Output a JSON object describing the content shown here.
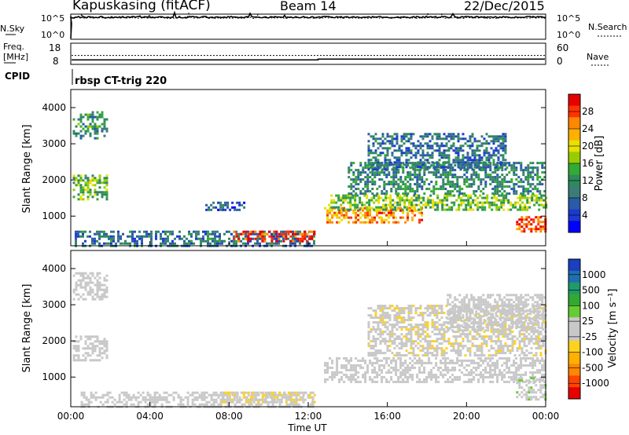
{
  "header": {
    "station": "Kapuskasing (fitACF)",
    "beam": "Beam 14",
    "date": "22/Dec/2015"
  },
  "noise_panel": {
    "left_label": "N.Sky",
    "left_ticks": [
      "10^5",
      "10^0"
    ],
    "right_label": "N.Search",
    "right_ticks": [
      "10^5",
      "10^0"
    ]
  },
  "freq_panel": {
    "left_label_lines": [
      "Freq.",
      "[MHz]"
    ],
    "left_ticks": [
      "18",
      "8"
    ],
    "right_label": "Nave",
    "right_ticks": [
      "60",
      "0"
    ]
  },
  "cpid": {
    "label": "CPID",
    "text": "rbsp CT-trig 220"
  },
  "power_colorbar": {
    "title": "Power [dB]",
    "ticks": [
      "28",
      "24",
      "20",
      "16",
      "12",
      "8",
      "4"
    ],
    "colors": [
      "#e60000",
      "#ff3300",
      "#ff8800",
      "#ffb000",
      "#e8e000",
      "#99cc00",
      "#33aa33",
      "#2d8a5a",
      "#3b7c78",
      "#2a5aa8",
      "#1a3ad0",
      "#0000ff"
    ]
  },
  "velocity_colorbar": {
    "title": "Velocity [m s⁻¹]",
    "ticks": [
      "1000",
      "500",
      "100",
      "25",
      "-25",
      "-100",
      "-500",
      "-1000"
    ],
    "colors": [
      "#1a3fbf",
      "#1f6fb0",
      "#1f9a6a",
      "#33a833",
      "#66cc33",
      "#c8c8c8",
      "#c8c8c8",
      "#ffd21f",
      "#ffb000",
      "#ff8800",
      "#ff4400",
      "#e60000"
    ]
  },
  "chart_data": {
    "type": "heatmap",
    "ylabel": "Slant Range [km]",
    "xlabel": "Time UT",
    "x_ticks": [
      "00:00",
      "04:00",
      "08:00",
      "12:00",
      "16:00",
      "20:00",
      "00:00"
    ],
    "y_ticks": [
      1000,
      2000,
      3000,
      4000
    ],
    "xlim_hours": [
      0,
      24
    ],
    "ylim_km": [
      180,
      4500
    ],
    "power_regions": [
      {
        "t0": 0.1,
        "t1": 1.8,
        "r0": 1450,
        "r1": 2150,
        "value": 14
      },
      {
        "t0": 0.1,
        "t1": 1.8,
        "r0": 3150,
        "r1": 3900,
        "value": 11
      },
      {
        "t0": 0.2,
        "t1": 12.3,
        "r0": 200,
        "r1": 600,
        "value": 8
      },
      {
        "t0": 8.2,
        "t1": 12.3,
        "r0": 300,
        "r1": 600,
        "value": 27
      },
      {
        "t0": 6.8,
        "t1": 8.8,
        "r0": 1200,
        "r1": 1400,
        "value": 6
      },
      {
        "t0": 12.8,
        "t1": 17.8,
        "r0": 800,
        "r1": 1250,
        "value": 23
      },
      {
        "t0": 13.0,
        "t1": 24.0,
        "r0": 1150,
        "r1": 1600,
        "value": 15
      },
      {
        "t0": 14.0,
        "t1": 24.0,
        "r0": 1600,
        "r1": 2500,
        "value": 10
      },
      {
        "t0": 15.0,
        "t1": 22.0,
        "r0": 2300,
        "r1": 3300,
        "value": 8
      },
      {
        "t0": 22.5,
        "t1": 24.0,
        "r0": 600,
        "r1": 1000,
        "value": 26
      }
    ],
    "velocity_regions": [
      {
        "t0": 0.1,
        "t1": 1.8,
        "r0": 1450,
        "r1": 2150,
        "value": 0
      },
      {
        "t0": 0.1,
        "t1": 1.8,
        "r0": 3150,
        "r1": 3900,
        "value": 0
      },
      {
        "t0": 0.5,
        "t1": 12.3,
        "r0": 200,
        "r1": 600,
        "value": 0
      },
      {
        "t0": 7.5,
        "t1": 12.3,
        "r0": 300,
        "r1": 600,
        "value": -150
      },
      {
        "t0": 12.8,
        "t1": 24.0,
        "r0": 850,
        "r1": 1550,
        "value": 0
      },
      {
        "t0": 15.0,
        "t1": 24.0,
        "r0": 1600,
        "r1": 3000,
        "value": -120
      },
      {
        "t0": 19.0,
        "t1": 24.0,
        "r0": 2300,
        "r1": 3300,
        "value": 80
      },
      {
        "t0": 22.5,
        "t1": 24.0,
        "r0": 400,
        "r1": 1000,
        "value": 120
      }
    ],
    "noise_sky_level": 0.88,
    "noise_search_level": 0.85,
    "freq_mhz": 10.5,
    "freq_dotted_mhz": 12.2,
    "nave_level": 11,
    "power_range_db": [
      0,
      30
    ],
    "velocity_range": [
      -1000,
      1000
    ]
  }
}
